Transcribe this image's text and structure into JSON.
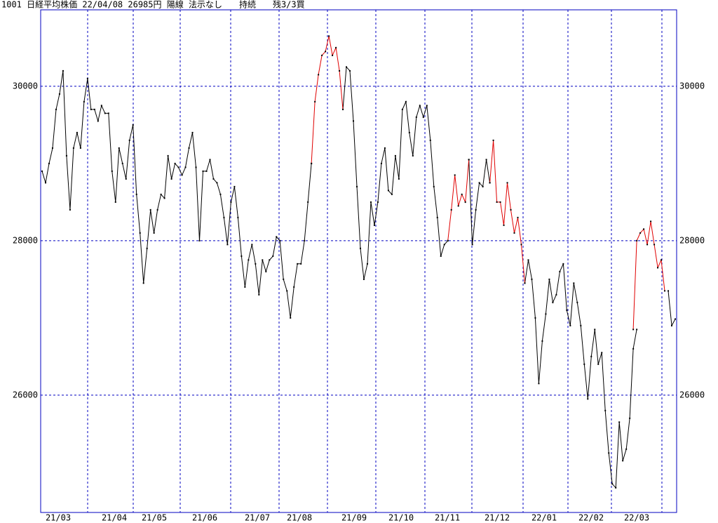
{
  "chart_data": {
    "type": "line",
    "title": "1001 日経平均株価 22/04/08 26985円 陽線 法示なし　　持続　　残3/3買",
    "xtick_labels": [
      "21/03",
      "21/04",
      "21/05",
      "21/06",
      "21/07",
      "21/08",
      "21/09",
      "21/10",
      "21/11",
      "21/12",
      "22/01",
      "22/02",
      "22/03"
    ],
    "ylim": [
      24480,
      30990
    ],
    "yticks": [
      26000,
      28000,
      30000
    ],
    "grid": true,
    "marker_color": "#000000",
    "series": [
      {
        "color": "#000000",
        "values": [
          28900,
          28750,
          29000,
          29200,
          29700,
          29900,
          30200,
          29100,
          28400,
          29200,
          29400,
          29200,
          29800,
          30100,
          29700,
          29700,
          29550,
          29750,
          29650,
          29650,
          28900,
          28500,
          29200,
          29000,
          28800,
          29300,
          29500,
          28600,
          28100,
          27450,
          27900,
          28400,
          28100,
          28400,
          28600,
          28550,
          29100,
          28800,
          29000,
          28950,
          28850,
          28950,
          29200,
          29400,
          28950,
          28000,
          28900,
          28900,
          29050,
          28800,
          28750,
          28600,
          28300,
          27950,
          28500,
          28700,
          28300,
          27800,
          27400,
          27750,
          27950,
          27700,
          27300,
          27750,
          27600,
          27750,
          27800,
          28050,
          28000,
          27500,
          27350,
          27000,
          27400,
          27700,
          27700,
          28000,
          28500,
          29000,
          null,
          null,
          null,
          null,
          null,
          null,
          null,
          null,
          29700,
          30250,
          30200,
          29550,
          28700,
          27900,
          27500,
          27700,
          28500,
          28200,
          28500,
          29000,
          29200,
          28650,
          28600,
          29100,
          28800,
          29700,
          29800,
          29400,
          29100,
          29600,
          29750,
          29600,
          29750,
          29300,
          28700,
          28300,
          27800,
          27950,
          28000,
          null,
          null,
          null,
          null,
          null,
          29050,
          27950,
          28400,
          28750,
          28700,
          29050,
          28750,
          null,
          null,
          null,
          null,
          null,
          null,
          null,
          null,
          null,
          27450,
          27750,
          27500,
          27000,
          26150,
          26700,
          27050,
          27500,
          27200,
          27300,
          27600,
          27700,
          27100,
          26900,
          27450,
          27200,
          26900,
          26400,
          25950,
          26500,
          26850,
          26400,
          26550,
          25800,
          25250,
          24850,
          24800,
          25650,
          25150,
          25300,
          25700,
          26600,
          26850,
          null,
          null,
          null,
          null,
          null,
          null,
          null,
          null,
          27350,
          26900,
          26985
        ]
      },
      {
        "color": "#e00000",
        "values": [
          null,
          null,
          null,
          null,
          null,
          null,
          null,
          null,
          null,
          null,
          null,
          null,
          null,
          null,
          null,
          null,
          null,
          null,
          null,
          null,
          null,
          null,
          null,
          null,
          null,
          null,
          null,
          null,
          null,
          null,
          null,
          null,
          null,
          null,
          null,
          null,
          null,
          null,
          null,
          null,
          null,
          null,
          null,
          null,
          null,
          null,
          null,
          null,
          null,
          null,
          null,
          null,
          null,
          null,
          null,
          null,
          null,
          null,
          null,
          null,
          null,
          null,
          null,
          null,
          null,
          null,
          null,
          null,
          null,
          null,
          null,
          null,
          null,
          null,
          null,
          null,
          null,
          29000,
          29800,
          30150,
          30400,
          30450,
          30650,
          30400,
          30500,
          30200,
          29700,
          null,
          null,
          null,
          null,
          null,
          null,
          null,
          null,
          null,
          null,
          null,
          null,
          null,
          null,
          null,
          null,
          null,
          null,
          null,
          null,
          null,
          null,
          null,
          null,
          null,
          null,
          null,
          null,
          null,
          28000,
          28400,
          28850,
          28450,
          28600,
          28500,
          29050,
          null,
          null,
          null,
          null,
          null,
          28750,
          29300,
          28500,
          28500,
          28200,
          28750,
          28400,
          28100,
          28300,
          27950,
          27450,
          null,
          null,
          null,
          null,
          null,
          null,
          null,
          null,
          null,
          null,
          null,
          null,
          null,
          null,
          null,
          null,
          null,
          null,
          null,
          null,
          null,
          null,
          null,
          null,
          null,
          null,
          null,
          null,
          null,
          null,
          26850,
          28000,
          28100,
          28150,
          27950,
          28250,
          27950,
          27650,
          27750,
          27350,
          null,
          null
        ]
      }
    ]
  }
}
